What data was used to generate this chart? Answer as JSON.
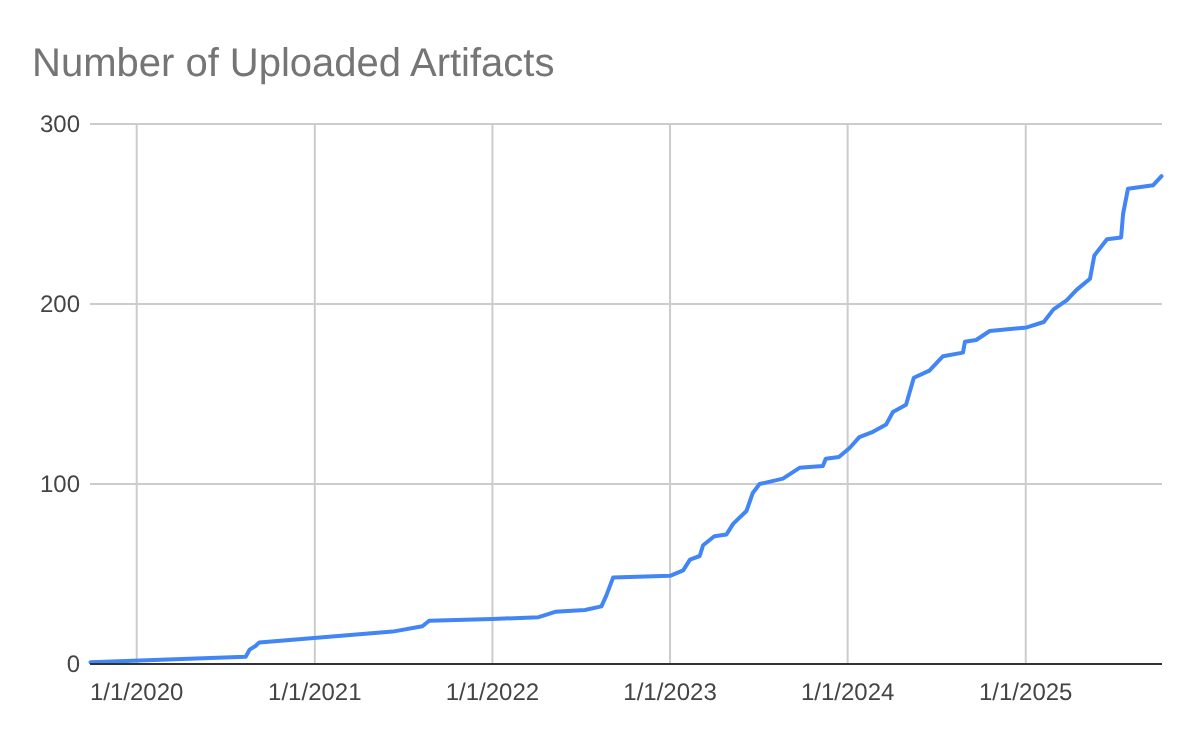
{
  "chart_data": {
    "type": "line",
    "title": "Number of Uploaded Artifacts",
    "grid": true,
    "marker": "none",
    "xlim": [
      "2019-09-27",
      "2025-10-08"
    ],
    "xticks": [
      {
        "value": "2020-01-01",
        "label": "1/1/2020"
      },
      {
        "value": "2021-01-01",
        "label": "1/1/2021"
      },
      {
        "value": "2022-01-01",
        "label": "1/1/2022"
      },
      {
        "value": "2023-01-01",
        "label": "1/1/2023"
      },
      {
        "value": "2024-01-01",
        "label": "1/1/2024"
      },
      {
        "value": "2025-01-01",
        "label": "1/1/2025"
      }
    ],
    "ylim": [
      0,
      300
    ],
    "yticks": [
      0,
      100,
      200,
      300
    ],
    "x": [
      "2019-09-28",
      "2020-08-12",
      "2020-08-20",
      "2020-09-01",
      "2020-09-09",
      "2021-06-10",
      "2021-08-10",
      "2021-08-24",
      "2022-01-01",
      "2022-04-06",
      "2022-05-10",
      "2022-07-10",
      "2022-08-13",
      "2022-08-23",
      "2022-09-06",
      "2023-01-01",
      "2023-01-28",
      "2023-02-11",
      "2023-03-03",
      "2023-03-10",
      "2023-04-02",
      "2023-04-27",
      "2023-05-11",
      "2023-06-07",
      "2023-06-20",
      "2023-07-04",
      "2023-08-21",
      "2023-09-24",
      "2023-11-11",
      "2023-11-17",
      "2023-12-14",
      "2024-01-05",
      "2024-01-25",
      "2024-02-22",
      "2024-03-20",
      "2024-04-03",
      "2024-04-30",
      "2024-05-16",
      "2024-06-17",
      "2024-07-15",
      "2024-08-25",
      "2024-08-29",
      "2024-09-21",
      "2024-10-19",
      "2025-01-03",
      "2025-02-07",
      "2025-02-27",
      "2025-03-26",
      "2025-04-16",
      "2025-05-13",
      "2025-05-22",
      "2025-06-17",
      "2025-07-16",
      "2025-07-20",
      "2025-07-30",
      "2025-09-20",
      "2025-10-07"
    ],
    "series": [
      {
        "color": "#4285f4",
        "values": [
          1,
          4,
          8,
          10,
          12,
          18,
          21,
          24,
          25,
          26,
          29,
          30,
          32,
          38,
          48,
          49,
          52,
          58,
          60,
          66,
          71,
          72,
          78,
          85,
          95,
          100,
          103,
          109,
          110,
          114,
          115,
          120,
          126,
          129,
          133,
          140,
          144,
          159,
          163,
          171,
          173,
          179,
          180,
          185,
          187,
          190,
          197,
          202,
          208,
          214,
          227,
          236,
          237,
          250,
          264,
          266,
          271
        ]
      }
    ]
  }
}
